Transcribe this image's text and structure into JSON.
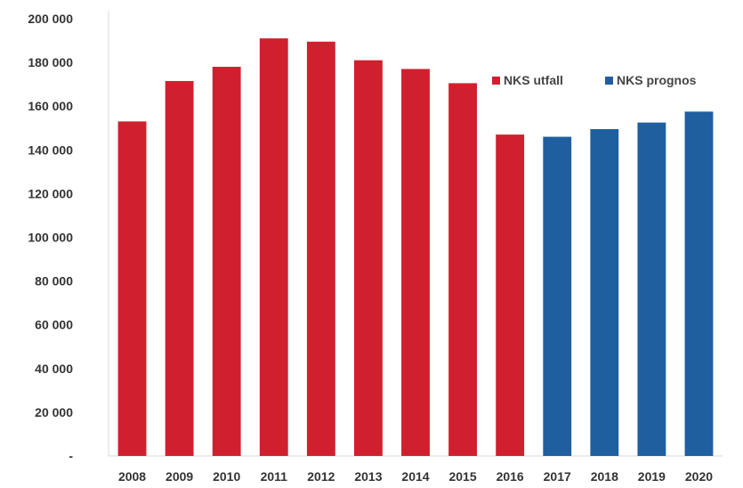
{
  "chart_data": {
    "type": "bar",
    "categories": [
      "2008",
      "2009",
      "2010",
      "2011",
      "2012",
      "2013",
      "2014",
      "2015",
      "2016",
      "2017",
      "2018",
      "2019",
      "2020"
    ],
    "series": [
      {
        "name": "NKS utfall",
        "color": "#d0202e",
        "values": [
          153000,
          171500,
          178000,
          191000,
          189500,
          181000,
          177000,
          170500,
          147000,
          null,
          null,
          null,
          null
        ]
      },
      {
        "name": "NKS prognos",
        "color": "#1f5fa0",
        "values": [
          null,
          null,
          null,
          null,
          null,
          null,
          null,
          null,
          null,
          146000,
          149500,
          152500,
          157500
        ]
      }
    ],
    "ylim": [
      0,
      200000
    ],
    "y_ticks": [
      "-",
      "20 000",
      "40 000",
      "60 000",
      "80 000",
      "100 000",
      "120 000",
      "140 000",
      "160 000",
      "180 000",
      "200 000"
    ],
    "y_tick_values": [
      0,
      20000,
      40000,
      60000,
      80000,
      100000,
      120000,
      140000,
      160000,
      180000,
      200000
    ],
    "grid": false,
    "legend_position": "top-right",
    "title": "",
    "xlabel": "",
    "ylabel": ""
  }
}
